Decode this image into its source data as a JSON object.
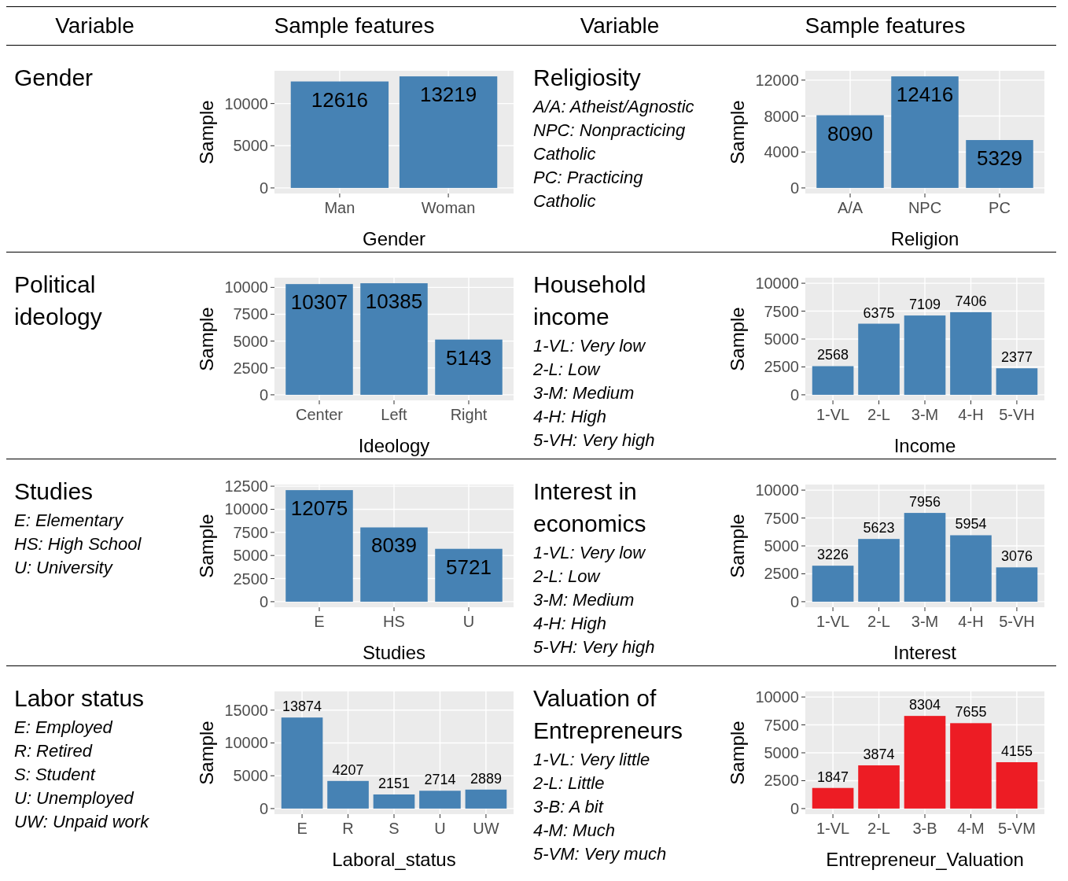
{
  "chart_data": [
    {
      "type": "other",
      "annotations": [
        "Variable",
        "Sample features",
        "Variable",
        "Sample features"
      ]
    },
    {
      "type": "other",
      "title": "Gender"
    },
    {
      "type": "bar",
      "categories": [
        "Man",
        "Woman"
      ],
      "values": [
        12616,
        13219
      ],
      "color": "#4682b4",
      "xlabel": "Gender",
      "ylabel": "Sample",
      "ylim": [
        -661,
        13880
      ],
      "yticks": [
        0,
        5000,
        10000
      ],
      "grid": true,
      "data_labels": true
    },
    {
      "type": "other",
      "title": "Religiosity",
      "annotations": [
        "A/A: Atheist/Agnostic",
        "NPC: Nonpracticing Catholic",
        "PC: Practicing Catholic"
      ]
    },
    {
      "type": "bar",
      "categories": [
        "A/A",
        "NPC",
        "PC"
      ],
      "values": [
        8090,
        12416,
        5329
      ],
      "color": "#4682b4",
      "xlabel": "Religion",
      "ylabel": "Sample",
      "ylim": [
        -621,
        13037
      ],
      "yticks": [
        0,
        4000,
        8000,
        12000
      ],
      "grid": true,
      "data_labels": true
    },
    {
      "type": "other",
      "title": "Political ideology"
    },
    {
      "type": "bar",
      "categories": [
        "Center",
        "Left",
        "Right"
      ],
      "values": [
        10307,
        10385,
        5143
      ],
      "color": "#4682b4",
      "xlabel": "Ideology",
      "ylabel": "Sample",
      "ylim": [
        -519,
        10904
      ],
      "yticks": [
        0,
        2500,
        5000,
        7500,
        10000
      ],
      "grid": true,
      "data_labels": true
    },
    {
      "type": "other",
      "title": "Household income",
      "annotations": [
        "1-VL: Very low",
        "2-L: Low",
        "3-M: Medium",
        "4-H: High",
        "5-VH: Very high"
      ]
    },
    {
      "type": "bar",
      "categories": [
        "1-VL",
        "2-L",
        "3-M",
        "4-H",
        "5-VH"
      ],
      "values": [
        2568,
        6375,
        7109,
        7406,
        2377
      ],
      "color": "#4682b4",
      "xlabel": "Income",
      "ylabel": "Sample",
      "ylim": [
        -500,
        10500
      ],
      "yticks": [
        0,
        2500,
        5000,
        7500,
        10000
      ],
      "grid": true,
      "data_labels": true
    },
    {
      "type": "other",
      "title": "Studies",
      "annotations": [
        "E: Elementary",
        "HS: High School",
        "U: University"
      ]
    },
    {
      "type": "bar",
      "categories": [
        "E",
        "HS",
        "U"
      ],
      "values": [
        12075,
        8039,
        5721
      ],
      "color": "#4682b4",
      "xlabel": "Studies",
      "ylabel": "Sample",
      "ylim": [
        -604,
        12679
      ],
      "yticks": [
        0,
        2500,
        5000,
        7500,
        10000,
        12500
      ],
      "grid": true,
      "data_labels": true
    },
    {
      "type": "other",
      "title": "Interest in economics",
      "annotations": [
        "1-VL: Very low",
        "2-L: Low",
        "3-M: Medium",
        "4-H: High",
        "5-VH: Very high"
      ]
    },
    {
      "type": "bar",
      "categories": [
        "1-VL",
        "2-L",
        "3-M",
        "4-H",
        "5-VH"
      ],
      "values": [
        3226,
        5623,
        7956,
        5954,
        3076
      ],
      "color": "#4682b4",
      "xlabel": "Interest",
      "ylabel": "Sample",
      "ylim": [
        -500,
        10500
      ],
      "yticks": [
        0,
        2500,
        5000,
        7500,
        10000
      ],
      "grid": true,
      "data_labels": true
    },
    {
      "type": "other",
      "title": "Labor status",
      "annotations": [
        "E: Employed",
        "R: Retired",
        "S: Student",
        "U: Unemployed",
        "UW: Unpaid work"
      ]
    },
    {
      "type": "bar",
      "categories": [
        "E",
        "R",
        "S",
        "U",
        "UW"
      ],
      "values": [
        13874,
        4207,
        2151,
        2714,
        2889
      ],
      "color": "#4682b4",
      "xlabel": "Laboral_status",
      "ylabel": "Sample",
      "ylim": [
        -850,
        17850
      ],
      "yticks": [
        0,
        5000,
        10000,
        15000
      ],
      "grid": true,
      "data_labels": true
    },
    {
      "type": "other",
      "title": "Valuation of Entrepreneurs",
      "annotations": [
        "1-VL: Very little",
        "2-L: Little",
        "3-B: A bit",
        "4-M: Much",
        "5-VM: Very much"
      ]
    },
    {
      "type": "bar",
      "categories": [
        "1-VL",
        "2-L",
        "3-B",
        "4-M",
        "5-VM"
      ],
      "values": [
        1847,
        3874,
        8304,
        7655,
        4155
      ],
      "color": "#ed1c24",
      "xlabel": "Entrepreneur_Valuation",
      "ylabel": "Sample",
      "ylim": [
        -500,
        10500
      ],
      "yticks": [
        0,
        2500,
        5000,
        7500,
        10000
      ],
      "grid": true,
      "data_labels": true
    }
  ]
}
